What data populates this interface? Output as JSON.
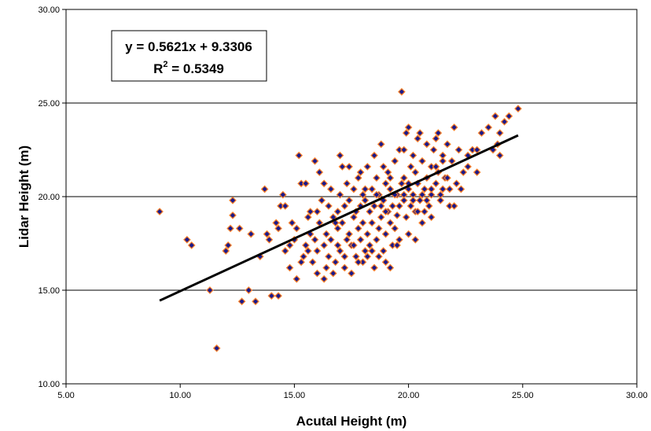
{
  "chart_data": {
    "type": "scatter",
    "xlabel": "Acutal Height (m)",
    "ylabel": "Lidar Height (m)",
    "xlim": [
      5,
      30
    ],
    "ylim": [
      10,
      30
    ],
    "x_ticks": [
      "5.00",
      "10.00",
      "15.00",
      "20.00",
      "25.00",
      "30.00"
    ],
    "y_ticks": [
      "10.00",
      "15.00",
      "20.00",
      "25.00",
      "30.00"
    ],
    "gridlines": "horizontal major",
    "equation": "y = 0.5621x + 9.3306",
    "r2_label": "R",
    "r2_sup": "2",
    "r2_value": " = 0.5349",
    "trendline": {
      "slope": 0.5621,
      "intercept": 9.3306,
      "x_range": [
        9.1,
        24.8
      ]
    },
    "colors": {
      "marker_fill": "#1a1a8c",
      "marker_stroke": "#ff7f27",
      "trendline": "#000000",
      "grid": "#000000"
    },
    "points": [
      [
        9.1,
        19.2
      ],
      [
        10.3,
        17.7
      ],
      [
        10.5,
        17.4
      ],
      [
        11.3,
        15.0
      ],
      [
        11.6,
        11.9
      ],
      [
        12.0,
        17.1
      ],
      [
        12.1,
        17.4
      ],
      [
        12.2,
        18.3
      ],
      [
        12.3,
        19.0
      ],
      [
        12.3,
        19.8
      ],
      [
        12.6,
        18.3
      ],
      [
        12.7,
        14.4
      ],
      [
        13.0,
        15.0
      ],
      [
        13.1,
        18.0
      ],
      [
        13.3,
        14.4
      ],
      [
        13.5,
        16.8
      ],
      [
        13.7,
        20.4
      ],
      [
        13.8,
        18.0
      ],
      [
        14.0,
        14.7
      ],
      [
        14.3,
        14.7
      ],
      [
        14.3,
        18.3
      ],
      [
        14.4,
        19.5
      ],
      [
        14.5,
        20.1
      ],
      [
        14.6,
        19.5
      ],
      [
        14.8,
        16.2
      ],
      [
        14.9,
        18.6
      ],
      [
        15.0,
        17.7
      ],
      [
        15.1,
        18.3
      ],
      [
        15.1,
        15.6
      ],
      [
        15.2,
        22.2
      ],
      [
        15.3,
        20.7
      ],
      [
        15.4,
        16.8
      ],
      [
        15.5,
        17.4
      ],
      [
        15.5,
        20.7
      ],
      [
        15.6,
        18.9
      ],
      [
        15.7,
        19.2
      ],
      [
        15.8,
        16.5
      ],
      [
        15.9,
        17.7
      ],
      [
        15.9,
        21.9
      ],
      [
        16.0,
        17.1
      ],
      [
        16.0,
        15.9
      ],
      [
        16.1,
        21.3
      ],
      [
        16.1,
        18.6
      ],
      [
        16.2,
        19.8
      ],
      [
        16.3,
        17.4
      ],
      [
        16.3,
        15.6
      ],
      [
        16.4,
        18.0
      ],
      [
        16.5,
        16.8
      ],
      [
        16.5,
        19.5
      ],
      [
        16.6,
        20.4
      ],
      [
        16.6,
        17.7
      ],
      [
        16.7,
        18.9
      ],
      [
        16.7,
        15.9
      ],
      [
        16.8,
        16.5
      ],
      [
        16.9,
        19.2
      ],
      [
        16.9,
        18.3
      ],
      [
        17.0,
        20.1
      ],
      [
        17.0,
        17.1
      ],
      [
        17.1,
        18.6
      ],
      [
        17.1,
        21.6
      ],
      [
        17.2,
        19.5
      ],
      [
        17.2,
        16.2
      ],
      [
        17.3,
        17.7
      ],
      [
        17.3,
        20.7
      ],
      [
        17.4,
        18.0
      ],
      [
        17.4,
        19.8
      ],
      [
        17.5,
        15.9
      ],
      [
        17.5,
        17.4
      ],
      [
        17.6,
        18.9
      ],
      [
        17.6,
        20.4
      ],
      [
        17.7,
        19.2
      ],
      [
        17.7,
        16.8
      ],
      [
        17.8,
        18.3
      ],
      [
        17.8,
        21.0
      ],
      [
        17.9,
        17.7
      ],
      [
        17.9,
        19.5
      ],
      [
        18.0,
        18.6
      ],
      [
        18.0,
        16.5
      ],
      [
        18.0,
        20.1
      ],
      [
        18.1,
        17.1
      ],
      [
        18.1,
        19.8
      ],
      [
        18.2,
        18.0
      ],
      [
        18.2,
        21.6
      ],
      [
        18.3,
        19.2
      ],
      [
        18.3,
        17.4
      ],
      [
        18.4,
        20.4
      ],
      [
        18.4,
        18.6
      ],
      [
        18.5,
        16.2
      ],
      [
        18.5,
        19.5
      ],
      [
        18.6,
        17.7
      ],
      [
        18.6,
        21.0
      ],
      [
        18.7,
        18.3
      ],
      [
        18.7,
        20.1
      ],
      [
        18.8,
        22.8
      ],
      [
        18.8,
        18.9
      ],
      [
        18.9,
        17.1
      ],
      [
        18.9,
        19.8
      ],
      [
        19.0,
        20.7
      ],
      [
        19.0,
        18.0
      ],
      [
        19.0,
        16.5
      ],
      [
        19.1,
        21.3
      ],
      [
        19.1,
        19.2
      ],
      [
        19.2,
        18.6
      ],
      [
        19.2,
        20.4
      ],
      [
        19.3,
        17.4
      ],
      [
        19.3,
        19.5
      ],
      [
        19.4,
        21.9
      ],
      [
        19.4,
        18.3
      ],
      [
        19.5,
        20.1
      ],
      [
        19.5,
        19.0
      ],
      [
        19.6,
        22.5
      ],
      [
        19.6,
        17.7
      ],
      [
        19.7,
        20.7
      ],
      [
        19.7,
        25.6
      ],
      [
        19.8,
        19.8
      ],
      [
        19.8,
        21.0
      ],
      [
        19.9,
        18.9
      ],
      [
        19.9,
        23.4
      ],
      [
        20.0,
        20.4
      ],
      [
        20.0,
        18.0
      ],
      [
        20.1,
        21.6
      ],
      [
        20.1,
        19.5
      ],
      [
        20.2,
        22.2
      ],
      [
        20.2,
        20.1
      ],
      [
        20.3,
        19.2
      ],
      [
        20.3,
        21.3
      ],
      [
        20.4,
        20.7
      ],
      [
        20.4,
        23.1
      ],
      [
        20.5,
        19.8
      ],
      [
        20.6,
        21.9
      ],
      [
        20.6,
        18.6
      ],
      [
        20.7,
        20.4
      ],
      [
        20.8,
        22.8
      ],
      [
        20.8,
        21.0
      ],
      [
        20.9,
        19.5
      ],
      [
        21.0,
        21.6
      ],
      [
        21.0,
        20.1
      ],
      [
        21.1,
        22.5
      ],
      [
        21.2,
        20.7
      ],
      [
        21.3,
        23.4
      ],
      [
        21.3,
        21.3
      ],
      [
        21.4,
        19.8
      ],
      [
        21.5,
        22.2
      ],
      [
        21.5,
        20.4
      ],
      [
        21.6,
        21.0
      ],
      [
        21.7,
        22.8
      ],
      [
        21.8,
        19.5
      ],
      [
        21.9,
        21.9
      ],
      [
        22.0,
        23.7
      ],
      [
        22.1,
        20.7
      ],
      [
        22.2,
        22.5
      ],
      [
        22.4,
        21.3
      ],
      [
        22.6,
        22.2
      ],
      [
        22.8,
        22.5
      ],
      [
        23.0,
        22.5
      ],
      [
        23.2,
        23.4
      ],
      [
        23.5,
        23.7
      ],
      [
        23.7,
        22.5
      ],
      [
        23.8,
        24.3
      ],
      [
        23.9,
        22.8
      ],
      [
        24.0,
        23.4
      ],
      [
        24.2,
        24.0
      ],
      [
        24.4,
        24.3
      ],
      [
        24.8,
        24.7
      ],
      [
        14.2,
        18.6
      ],
      [
        14.6,
        17.1
      ],
      [
        15.3,
        16.5
      ],
      [
        15.7,
        18.0
      ],
      [
        16.0,
        19.2
      ],
      [
        16.3,
        20.7
      ],
      [
        16.8,
        18.6
      ],
      [
        17.0,
        22.2
      ],
      [
        17.2,
        16.8
      ],
      [
        17.6,
        17.4
      ],
      [
        17.9,
        21.3
      ],
      [
        18.2,
        16.8
      ],
      [
        18.5,
        22.2
      ],
      [
        18.7,
        16.8
      ],
      [
        18.9,
        21.6
      ],
      [
        19.2,
        16.2
      ],
      [
        19.5,
        17.4
      ],
      [
        19.8,
        22.5
      ],
      [
        20.0,
        23.7
      ],
      [
        20.3,
        17.7
      ],
      [
        20.5,
        23.4
      ],
      [
        20.7,
        19.2
      ],
      [
        21.0,
        18.9
      ],
      [
        21.2,
        23.1
      ],
      [
        21.4,
        20.1
      ],
      [
        21.7,
        21.0
      ],
      [
        22.0,
        19.5
      ],
      [
        22.3,
        20.4
      ],
      [
        22.6,
        21.6
      ],
      [
        23.0,
        21.3
      ],
      [
        24.0,
        22.2
      ],
      [
        13.9,
        17.7
      ],
      [
        14.8,
        17.4
      ],
      [
        15.6,
        17.1
      ],
      [
        16.4,
        16.2
      ],
      [
        16.9,
        17.4
      ],
      [
        17.4,
        21.6
      ],
      [
        17.8,
        16.5
      ],
      [
        18.1,
        20.4
      ],
      [
        18.4,
        17.1
      ],
      [
        18.6,
        20.1
      ],
      [
        18.8,
        19.5
      ],
      [
        19.0,
        19.2
      ],
      [
        19.2,
        21.0
      ],
      [
        19.4,
        20.1
      ],
      [
        19.6,
        19.5
      ],
      [
        19.8,
        20.1
      ],
      [
        20.0,
        20.7
      ],
      [
        20.2,
        19.8
      ],
      [
        20.4,
        19.2
      ],
      [
        20.6,
        20.1
      ],
      [
        20.8,
        19.8
      ],
      [
        21.0,
        20.4
      ],
      [
        21.2,
        21.6
      ],
      [
        21.5,
        21.9
      ],
      [
        21.8,
        20.4
      ]
    ]
  }
}
